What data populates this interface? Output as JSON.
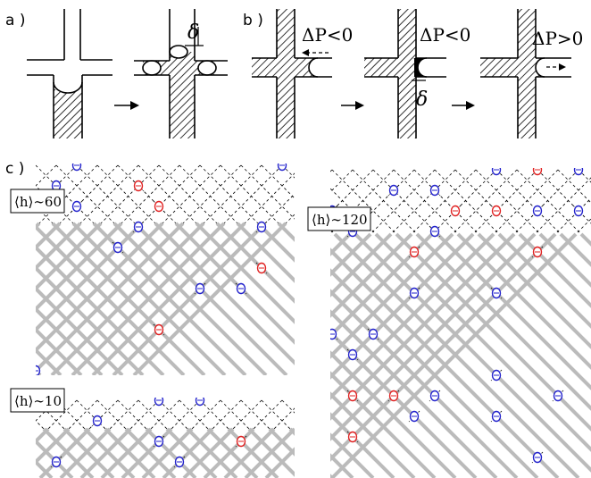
{
  "panel_labels": {
    "a": "a )",
    "b": "b )",
    "c": "c )"
  },
  "panel_b": {
    "dp1": "ΔP<0",
    "dp2": "ΔP<0",
    "dp3": "ΔP>0"
  },
  "delta_symbol": "δ",
  "lattices": [
    {
      "label": "⟨h⟩∼60"
    },
    {
      "label": "⟨h⟩∼120"
    },
    {
      "label": "⟨h⟩∼10"
    }
  ],
  "colors": {
    "lattice": "#bbbbbb",
    "blue_marker": "#2222cc",
    "red_marker": "#e02020",
    "line": "#000000"
  }
}
